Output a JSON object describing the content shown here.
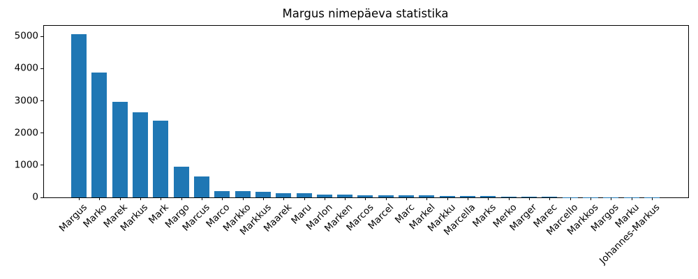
{
  "chart_data": {
    "type": "bar",
    "title": "Margus nimepäeva statistika",
    "xlabel": "",
    "ylabel": "",
    "categories": [
      "Margus",
      "Marko",
      "Marek",
      "Markus",
      "Mark",
      "Margo",
      "Marcus",
      "Marco",
      "Markko",
      "Markkus",
      "Maarek",
      "Maru",
      "Marlon",
      "Marken",
      "Marcos",
      "Marcel",
      "Marc",
      "Markel",
      "Markku",
      "Marcella",
      "Marks",
      "Merko",
      "Marger",
      "Marec",
      "Marcello",
      "Markkos",
      "Margos",
      "Marku",
      "Johannes-Markus"
    ],
    "values": [
      5080,
      3880,
      2960,
      2640,
      2390,
      950,
      640,
      200,
      185,
      180,
      140,
      130,
      82,
      78,
      76,
      74,
      72,
      70,
      45,
      40,
      35,
      30,
      26,
      24,
      10,
      7,
      5,
      4,
      2
    ],
    "yticks": [
      0,
      1000,
      2000,
      3000,
      4000,
      5000
    ],
    "ylim": [
      0,
      5330
    ],
    "x_tick_rotation_deg": 45,
    "grid": false,
    "bar_color": "#1f77b4",
    "axis_color": "#000000",
    "text_color": "#000000",
    "background_color": "#ffffff"
  }
}
